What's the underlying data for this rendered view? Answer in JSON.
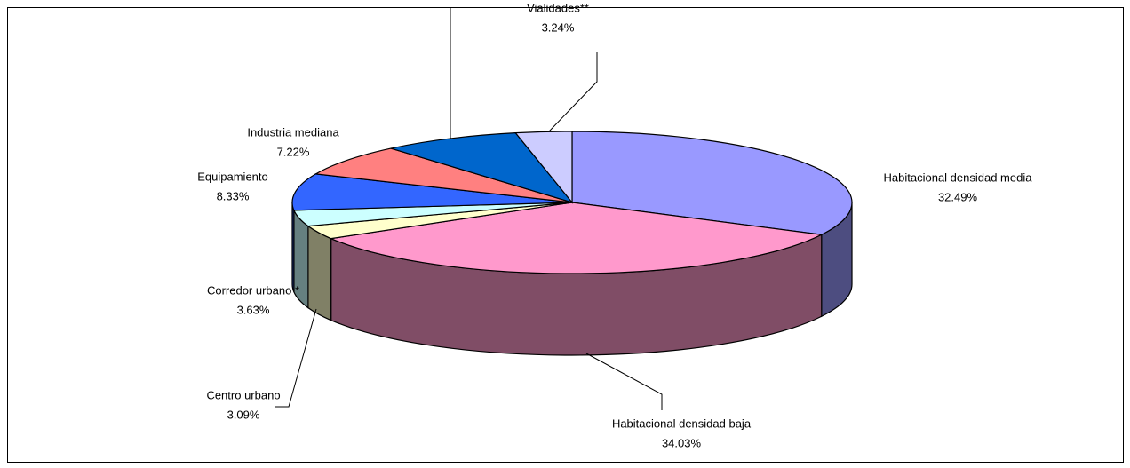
{
  "chart_data": {
    "type": "pie3d",
    "categories": [
      "Habitacional densidad media",
      "Habitacional densidad baja",
      "Centro urbano",
      "Corredor urbano *",
      "Equipamiento",
      "Industria mediana",
      null,
      "Vialidades**"
    ],
    "values": [
      32.49,
      34.03,
      3.09,
      3.63,
      8.33,
      7.22,
      7.97,
      3.24
    ],
    "value_labels": [
      "32.49%",
      "34.03%",
      "3.09%",
      "3.63%",
      "8.33%",
      "7.22%",
      null,
      "3.24%"
    ],
    "colors": [
      "#9999ff",
      "#ff99cc",
      "#ffffcc",
      "#ccffff",
      "#3366ff",
      "#ff8080",
      "#0066cc",
      "#ccccff"
    ]
  }
}
